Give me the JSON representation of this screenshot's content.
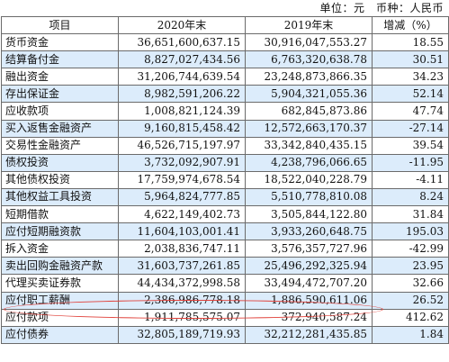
{
  "unit_label": "单位：元　币种：人民币",
  "headers": [
    "项目",
    "2020年末",
    "2019年末",
    "增减（%）"
  ],
  "rows": [
    [
      "货币资金",
      "36,651,600,637.15",
      "30,916,047,553.27",
      "18.55"
    ],
    [
      "结算备付金",
      "8,827,027,434.56",
      "6,763,320,638.78",
      "30.51"
    ],
    [
      "融出资金",
      "31,206,744,639.54",
      "23,248,873,866.35",
      "34.23"
    ],
    [
      "存出保证金",
      "8,982,591,206.22",
      "5,904,321,055.36",
      "52.14"
    ],
    [
      "应收款项",
      "1,008,821,124.39",
      "682,845,873.86",
      "47.74"
    ],
    [
      "买入返售金融资产",
      "9,160,815,458.42",
      "12,572,663,170.37",
      "-27.14"
    ],
    [
      "交易性金融资产",
      "46,526,715,197.97",
      "33,342,840,435.15",
      "39.54"
    ],
    [
      "债权投资",
      "3,732,092,907.91",
      "4,238,796,066.65",
      "-11.95"
    ],
    [
      "其他债权投资",
      "17,759,974,678.54",
      "18,522,040,228.79",
      "-4.11"
    ],
    [
      "其他权益工具投资",
      "5,964,824,777.85",
      "5,510,778,810.08",
      "8.24"
    ],
    [
      "短期借款",
      "4,622,149,402.73",
      "3,505,844,122.80",
      "31.84"
    ],
    [
      "应付短期融资款",
      "11,604,103,001.41",
      "3,933,260,648.75",
      "195.03"
    ],
    [
      "拆入资金",
      "2,038,836,747.11",
      "3,576,357,727.96",
      "-42.99"
    ],
    [
      "卖出回购金融资产款",
      "31,603,737,261.85",
      "25,496,292,325.94",
      "23.95"
    ],
    [
      "代理买卖证券款",
      "44,434,372,998.58",
      "33,494,472,707.20",
      "32.66"
    ],
    [
      "应付职工薪酬",
      "2,386,986,778.18",
      "1,886,590,611.06",
      "26.52"
    ],
    [
      "应付款项",
      "1,911,785,575.07",
      "372,940,587.24",
      "412.62"
    ],
    [
      "应付债券",
      "32,805,189,719.93",
      "32,212,281,435.85",
      "1.84"
    ]
  ]
}
